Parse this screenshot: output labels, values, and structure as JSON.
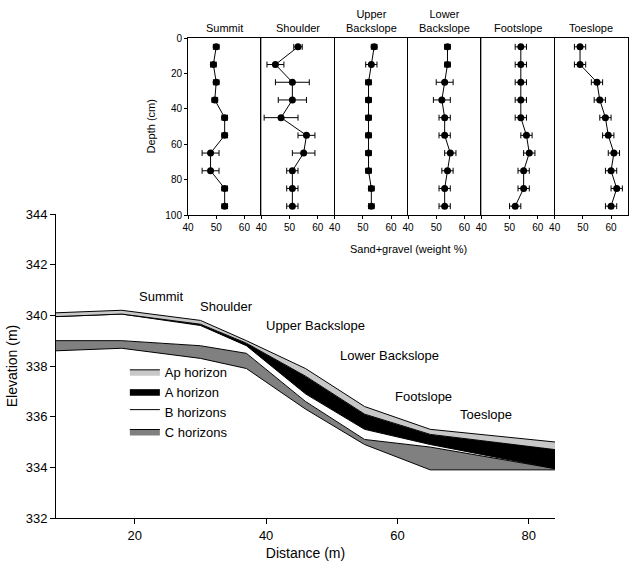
{
  "chart_data": [
    {
      "type": "area",
      "xlabel": "Distance (m)",
      "ylabel": "Elevation (m)",
      "xlim": [
        8,
        84
      ],
      "xticks": [
        20,
        40,
        60,
        80
      ],
      "ylim": [
        332,
        344
      ],
      "yticks": [
        332,
        334,
        336,
        338,
        340,
        342,
        344
      ],
      "grid": false,
      "legend": "lower left",
      "x": [
        8,
        18,
        30,
        37,
        46,
        55,
        65,
        84
      ],
      "surface": [
        340.1,
        340.2,
        339.8,
        339.0,
        337.9,
        336.4,
        335.5,
        335.0
      ],
      "series": [
        {
          "name": "Ap horizon",
          "color": "#c8c8c8",
          "values": [
            339.95,
            340.05,
            339.65,
            338.9,
            337.6,
            336.1,
            335.3,
            334.7
          ]
        },
        {
          "name": "A horizon",
          "color": "#000000",
          "values": [
            339.95,
            340.05,
            339.6,
            338.8,
            336.9,
            335.5,
            334.9,
            333.95
          ]
        },
        {
          "name": "B horizons",
          "color": "#ffffff",
          "values": [
            339.0,
            339.0,
            338.8,
            338.5,
            336.6,
            335.1,
            334.8,
            333.95
          ]
        },
        {
          "name": "C horizons",
          "color": "#808080",
          "values": [
            338.6,
            338.7,
            338.3,
            337.9,
            336.3,
            334.9,
            333.9,
            333.9
          ]
        }
      ],
      "annotations": [
        {
          "text": "Summit",
          "x": 24,
          "y": 340.75
        },
        {
          "text": "Shoulder",
          "x": 34,
          "y": 340.35
        },
        {
          "text": "Upper Backslope",
          "x": 47.5,
          "y": 339.6
        },
        {
          "text": "Lower Backslope",
          "x": 58.8,
          "y": 338.4
        },
        {
          "text": "Footslope",
          "x": 64,
          "y": 336.8
        },
        {
          "text": "Toeslope",
          "x": 73.5,
          "y": 336.1
        }
      ]
    },
    {
      "type": "scatter",
      "xlabel": "Sand+gravel (weight %)",
      "ylabel": "Depth (cm)",
      "xlim": [
        40,
        66
      ],
      "xticks": [
        40,
        50,
        60
      ],
      "ylim": [
        100,
        0
      ],
      "yticks": [
        0,
        20,
        40,
        60,
        80,
        100
      ],
      "grid": false,
      "marker": "circle",
      "line_style": "solid",
      "color": "#000000",
      "y": [
        5,
        15,
        25,
        35,
        45,
        55,
        65,
        75,
        85,
        95
      ],
      "panels": [
        {
          "title": "Summit",
          "values": [
            50,
            49,
            50,
            49.5,
            53,
            53,
            48,
            48,
            53,
            53
          ],
          "errors": [
            1,
            1,
            1,
            1,
            1,
            1,
            3,
            3,
            1,
            1
          ]
        },
        {
          "title": "Shoulder",
          "values": [
            53,
            45,
            51,
            51,
            47,
            56,
            55,
            51,
            51,
            51
          ],
          "errors": [
            1.5,
            3,
            6,
            5,
            6,
            3,
            4,
            2,
            2,
            2
          ]
        },
        {
          "title": "Upper Backslope",
          "values": [
            54,
            53,
            52,
            52,
            52,
            52,
            52,
            52,
            53,
            53
          ],
          "errors": [
            1,
            2,
            1,
            1,
            1,
            1,
            1,
            1,
            1,
            1
          ]
        },
        {
          "title": "Lower Backslope",
          "values": [
            54,
            54,
            53,
            52,
            53,
            53,
            55,
            54,
            53,
            53
          ],
          "errors": [
            1,
            1,
            3,
            3,
            2,
            2,
            2,
            2,
            2,
            2
          ]
        },
        {
          "title": "Footslope",
          "values": [
            54,
            54,
            54,
            54,
            54,
            56,
            57,
            55,
            55,
            52
          ],
          "errors": [
            2,
            2,
            2,
            2,
            2,
            2,
            2,
            2,
            2,
            2
          ]
        },
        {
          "title": "Toeslope",
          "values": [
            49,
            49,
            55,
            56,
            58,
            59,
            61,
            60,
            62,
            60
          ],
          "errors": [
            2,
            2,
            2,
            2,
            2,
            2,
            2,
            2,
            2,
            2
          ]
        }
      ]
    }
  ]
}
